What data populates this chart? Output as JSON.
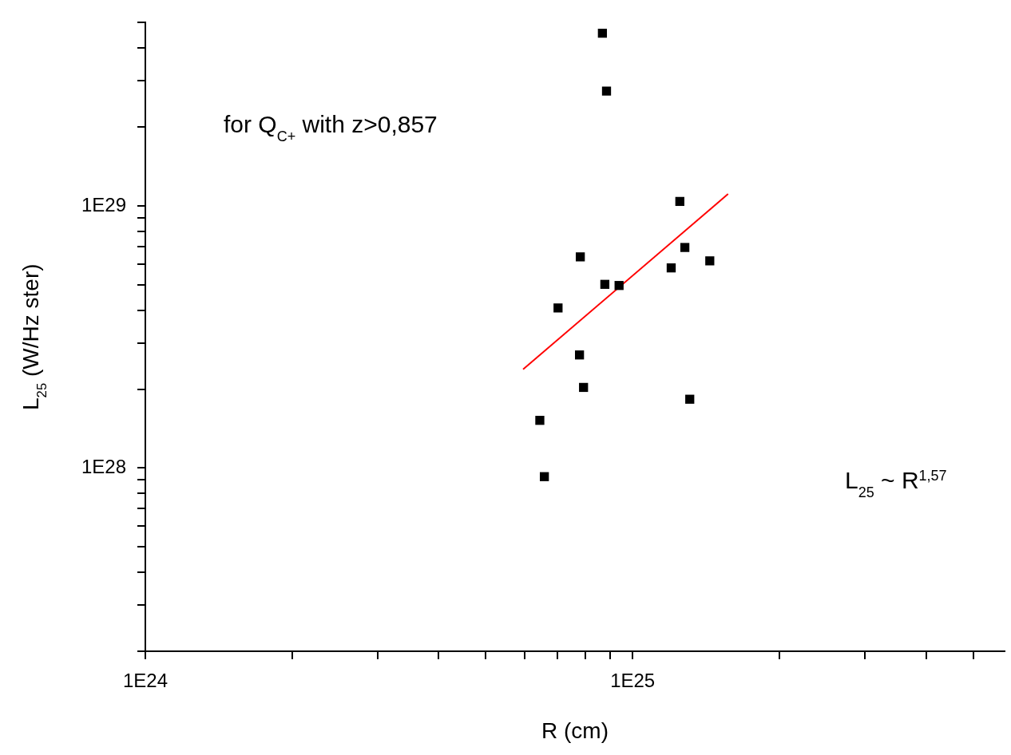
{
  "chart_data": {
    "type": "scatter",
    "xlabel": "R (cm)",
    "ylabel": "L$_{25}$ (W/Hz ster)",
    "log": "xy",
    "grid": false,
    "legend": false,
    "marker": "square",
    "xlim": [
      1e+24,
      5.8e+25
    ],
    "ylim": [
      2e+27,
      5e+29
    ],
    "xticks": [
      {
        "value": 1e+24,
        "label": "1E24"
      },
      {
        "value": 2e+24,
        "label": null
      },
      {
        "value": 3e+24,
        "label": null
      },
      {
        "value": 4e+24,
        "label": null
      },
      {
        "value": 5e+24,
        "label": null
      },
      {
        "value": 6e+24,
        "label": null
      },
      {
        "value": 7e+24,
        "label": null
      },
      {
        "value": 8e+24,
        "label": null
      },
      {
        "value": 9e+24,
        "label": null
      },
      {
        "value": 1e+25,
        "label": "1E25"
      },
      {
        "value": 2e+25,
        "label": null
      },
      {
        "value": 3e+25,
        "label": null
      },
      {
        "value": 4e+25,
        "label": null
      },
      {
        "value": 5e+25,
        "label": null
      }
    ],
    "yticks": [
      {
        "value": 2e+27,
        "label": null
      },
      {
        "value": 3e+27,
        "label": null
      },
      {
        "value": 4e+27,
        "label": null
      },
      {
        "value": 5e+27,
        "label": null
      },
      {
        "value": 6e+27,
        "label": null
      },
      {
        "value": 7e+27,
        "label": null
      },
      {
        "value": 8e+27,
        "label": null
      },
      {
        "value": 9e+27,
        "label": null
      },
      {
        "value": 1e+28,
        "label": "1E28"
      },
      {
        "value": 2e+28,
        "label": null
      },
      {
        "value": 3e+28,
        "label": null
      },
      {
        "value": 4e+28,
        "label": null
      },
      {
        "value": 5e+28,
        "label": null
      },
      {
        "value": 6e+28,
        "label": null
      },
      {
        "value": 7e+28,
        "label": null
      },
      {
        "value": 8e+28,
        "label": null
      },
      {
        "value": 9e+28,
        "label": null
      },
      {
        "value": 1e+29,
        "label": "1E29"
      },
      {
        "value": 2e+29,
        "label": null
      },
      {
        "value": 3e+29,
        "label": null
      },
      {
        "value": 4e+29,
        "label": null
      },
      {
        "value": 5e+29,
        "label": null
      }
    ],
    "series": [
      {
        "type": "scatter",
        "color": "#000000",
        "x": [
          8.67e+24,
          8.84e+24,
          1.25e+25,
          1.28e+25,
          1.2e+25,
          1.44e+25,
          7.81e+24,
          8.77e+24,
          9.38e+24,
          7.03e+24,
          7.78e+24,
          7.93e+24,
          1.31e+25,
          6.45e+24,
          6.59e+24
        ],
        "values": [
          4.56e+29,
          2.74e+29,
          1.04e+29,
          6.94e+28,
          5.8e+28,
          6.17e+28,
          6.39e+28,
          5.02e+28,
          4.97e+28,
          4.08e+28,
          2.7e+28,
          2.03e+28,
          1.83e+28,
          1.52e+28,
          9.27e+27
        ]
      },
      {
        "type": "line",
        "color": "#ff0000",
        "marker": "none",
        "x": [
          5.96e+24,
          1.57e+25
        ],
        "values": [
          2.38e+28,
          1.11e+29
        ]
      }
    ],
    "annotations": [
      "for Q$_{C+}$ with z>0,857",
      "L$_{25}$ ~ R$^{1,57}$"
    ]
  }
}
